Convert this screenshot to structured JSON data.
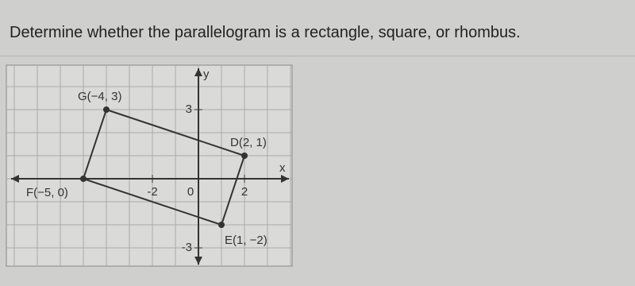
{
  "question": "Determine whether the parallelogram is a rectangle, square, or rhombus.",
  "graph": {
    "x_axis_label": "x",
    "y_axis_label": "y",
    "ticks": [
      {
        "axis": "x",
        "value": -2,
        "label": "-2"
      },
      {
        "axis": "x",
        "value": 0,
        "label": "0"
      },
      {
        "axis": "x",
        "value": 2,
        "label": "2"
      },
      {
        "axis": "y",
        "value": 3,
        "label": "3"
      },
      {
        "axis": "y",
        "value": -3,
        "label": "-3"
      }
    ],
    "points": [
      {
        "label": "G(−4, 3)",
        "x": -4,
        "y": 3
      },
      {
        "label": "D(2, 1)",
        "x": 2,
        "y": 1
      },
      {
        "label": "E(1, −2)",
        "x": 1,
        "y": -2
      },
      {
        "label": "F(−5, 0)",
        "x": -5,
        "y": 0
      }
    ]
  }
}
